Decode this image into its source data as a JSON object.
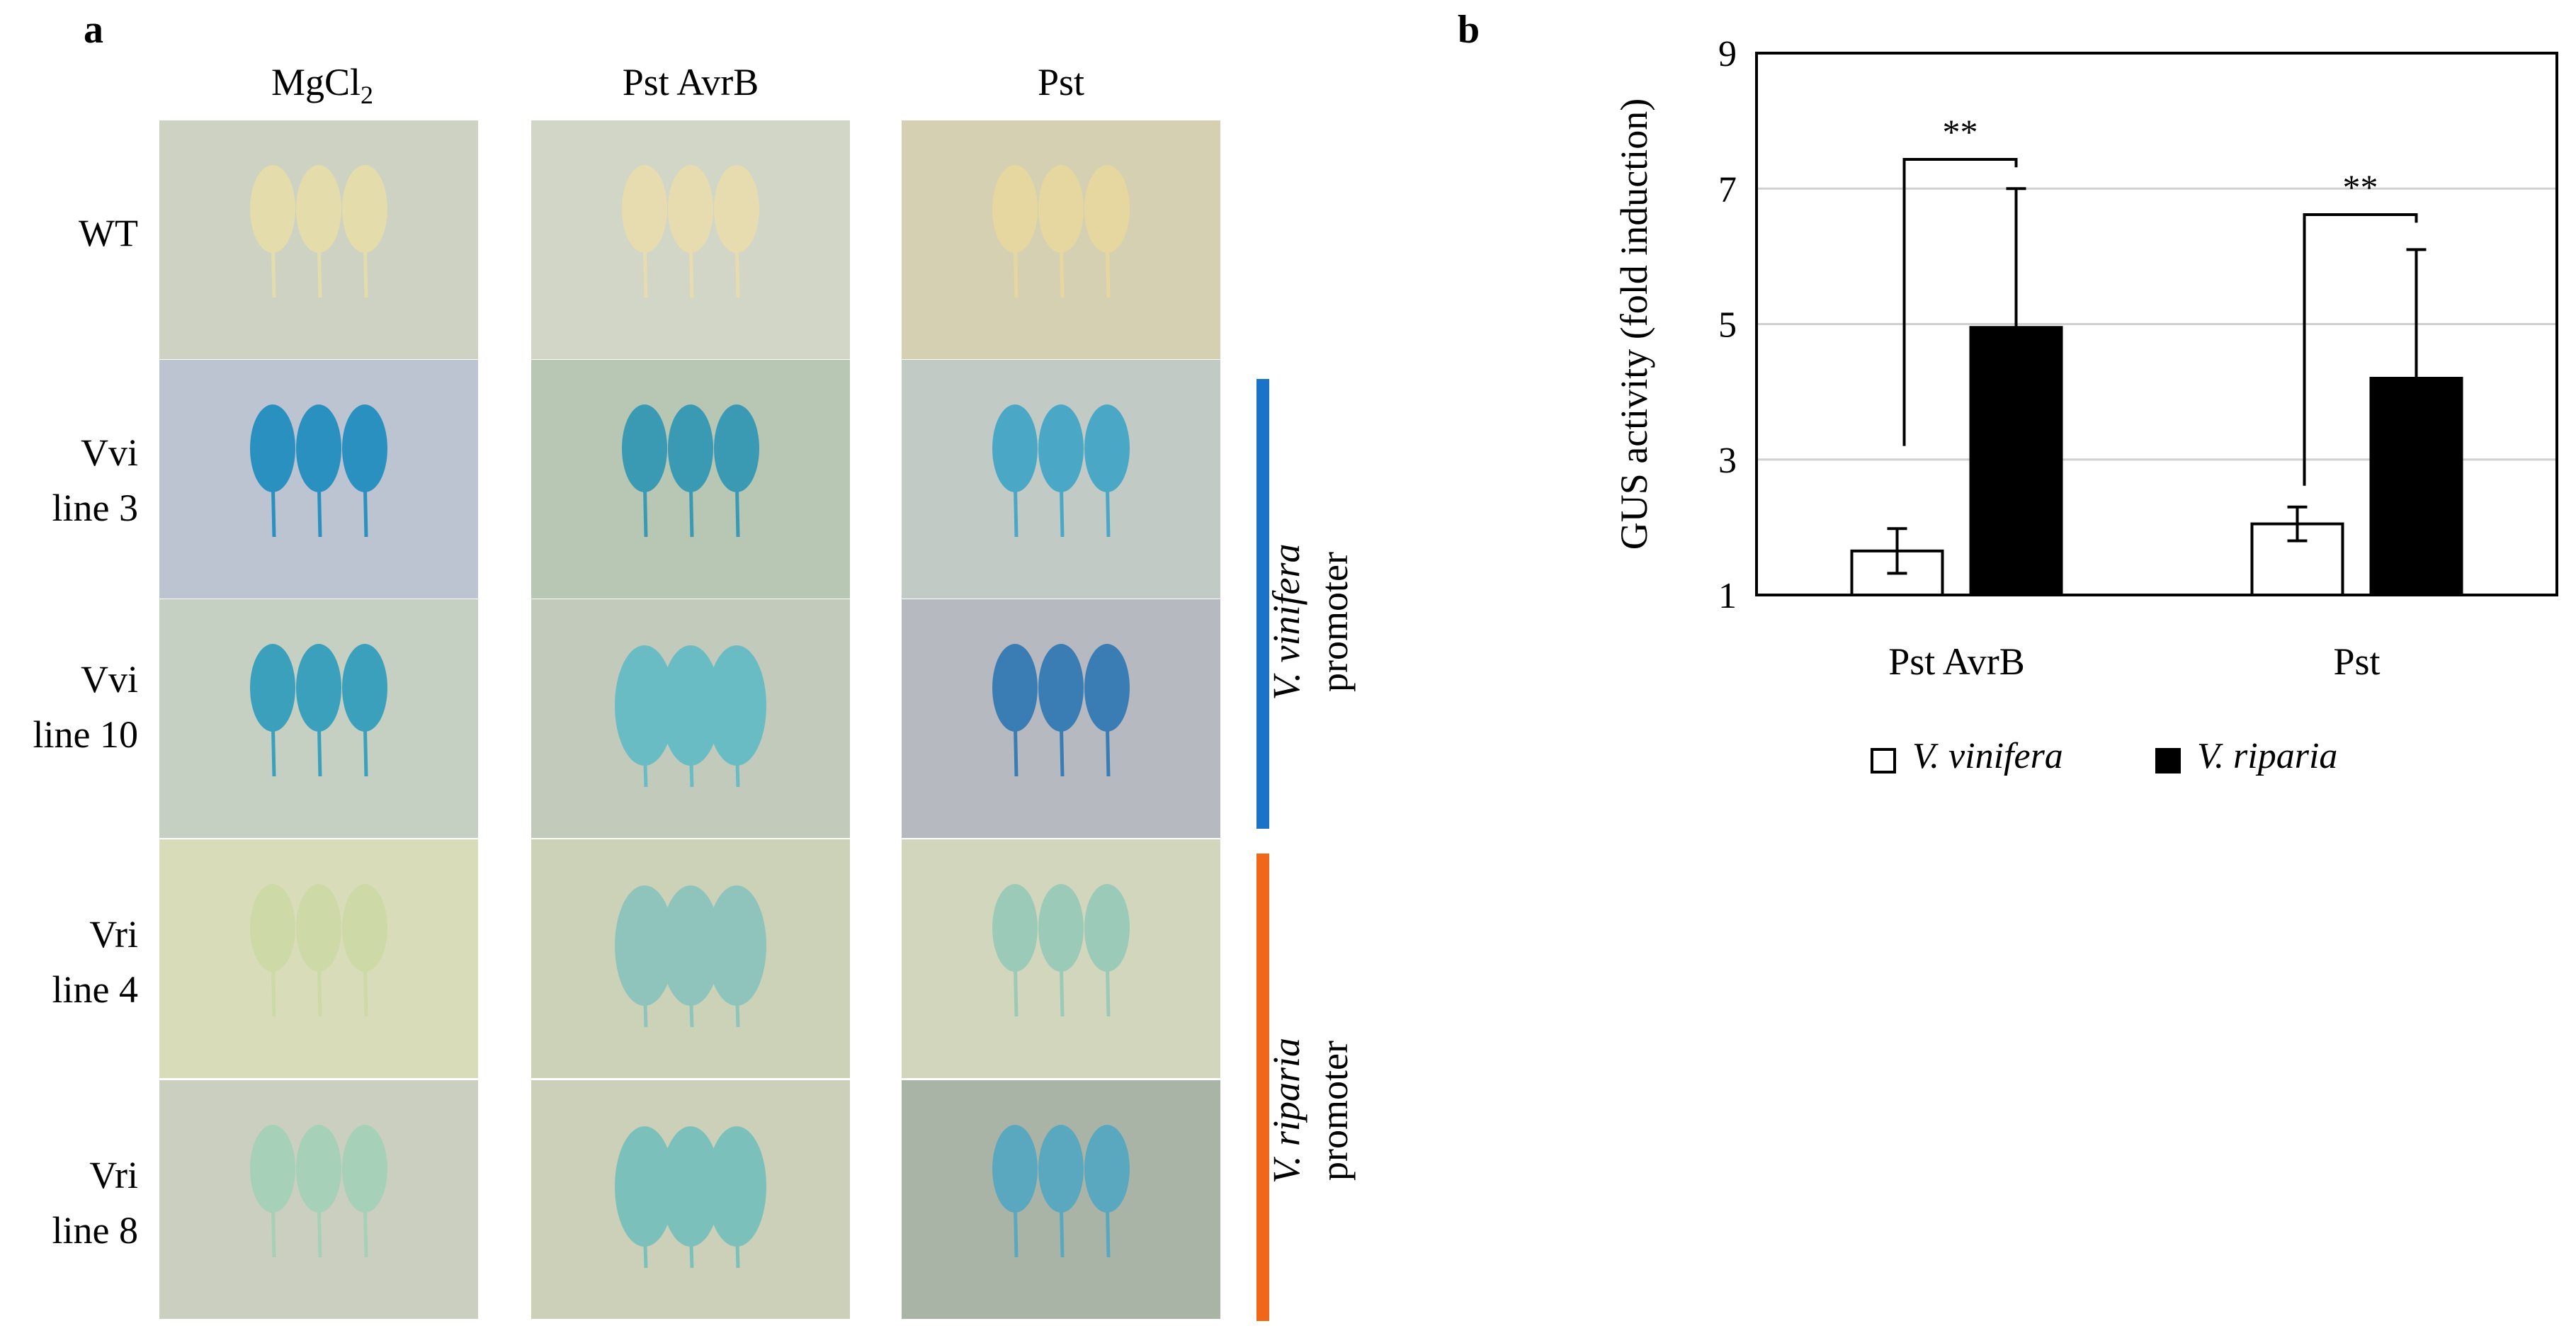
{
  "panel_a": {
    "label": "a",
    "columns": [
      "MgCl",
      "Pst AvrB",
      "Pst"
    ],
    "mgcl_subscript": "2",
    "rows": [
      {
        "line1": "WT",
        "line2": ""
      },
      {
        "line1": "Vvi",
        "line2": "line 3"
      },
      {
        "line1": "Vvi",
        "line2": "line 10"
      },
      {
        "line1": "Vri",
        "line2": "line 4"
      },
      {
        "line1": "Vri",
        "line2": "line 8"
      }
    ],
    "promoters": [
      {
        "species": "V. vinifera",
        "word": "promoter",
        "color": "#1a73c9"
      },
      {
        "species": "V. riparia",
        "word": "promoter",
        "color": "#f0671a"
      }
    ]
  },
  "panel_b": {
    "label": "b"
  },
  "chart_data": {
    "type": "bar",
    "categories": [
      "Pst AvrB",
      "Pst"
    ],
    "series": [
      {
        "name": "V. vinifera",
        "values": [
          1.65,
          2.05
        ],
        "errors": [
          0.33,
          0.25
        ],
        "color": "#ffffff"
      },
      {
        "name": "V. riparia",
        "values": [
          4.95,
          4.2
        ],
        "errors": [
          2.05,
          1.9
        ],
        "color": "#000000"
      }
    ],
    "ylabel": "GUS activity (fold induction)",
    "xlabel": "",
    "title": "",
    "ylim": [
      1,
      9
    ],
    "yticks": [
      1,
      3,
      5,
      7,
      9
    ],
    "grid": true,
    "significance": [
      {
        "category_index": 0,
        "text": "**"
      },
      {
        "category_index": 1,
        "text": "**"
      }
    ],
    "legend_position": "bottom"
  }
}
